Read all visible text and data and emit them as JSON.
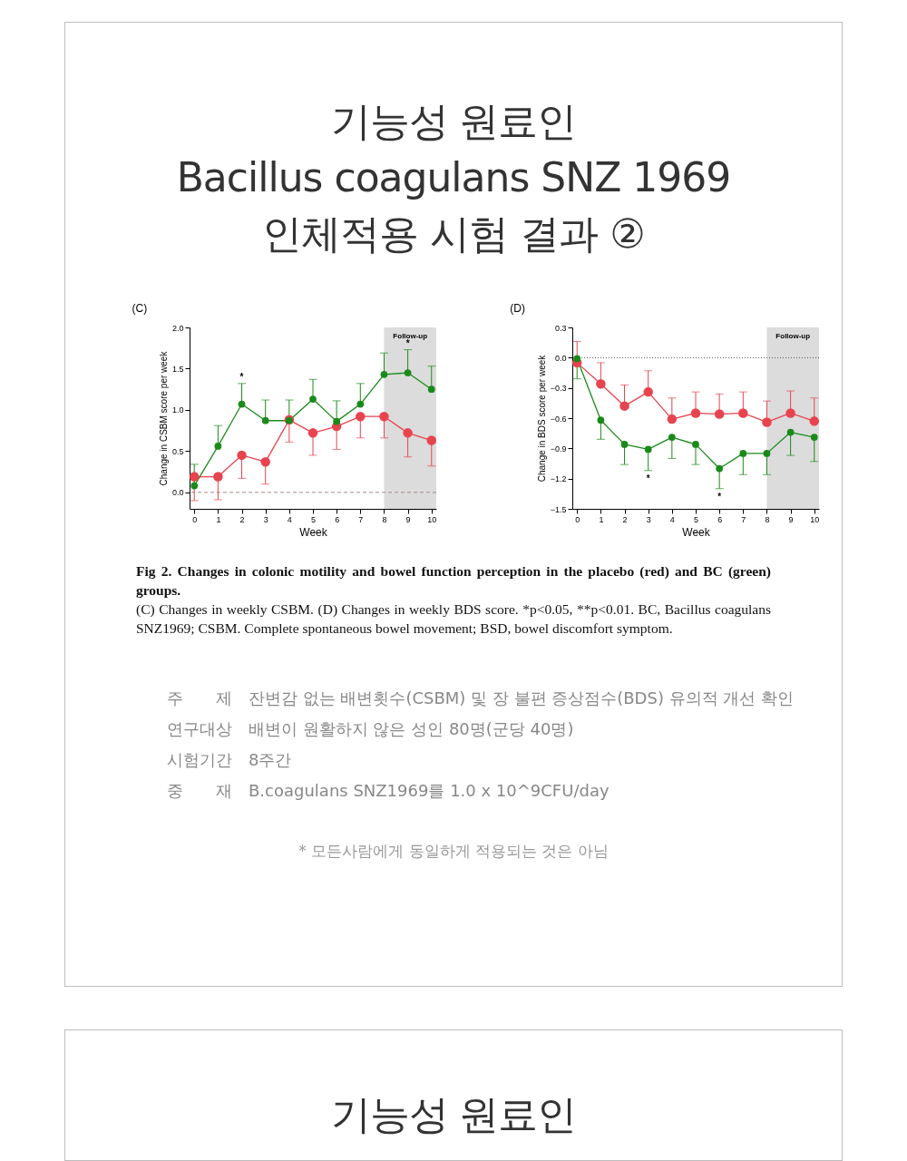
{
  "chart_data": [
    {
      "type": "line",
      "title": "(C)",
      "xlabel": "Week",
      "ylabel": "Change in CSBM score per week",
      "x": [
        0,
        1,
        2,
        3,
        4,
        5,
        6,
        7,
        8,
        9,
        10
      ],
      "xlim": [
        -0.2,
        10.2
      ],
      "xticks": [
        0,
        1,
        2,
        3,
        4,
        5,
        6,
        7,
        8,
        9,
        10
      ],
      "ylim": [
        -0.2,
        2.0
      ],
      "yticks": [
        {
          "value": 0,
          "label": "0.0"
        },
        0.5,
        {
          "value": 1,
          "label": "1.0"
        },
        1.5,
        {
          "value": 2,
          "label": "2.0"
        }
      ],
      "marker": "circle",
      "series": [
        {
          "color": "#e8444f",
          "values": [
            0.19,
            0.19,
            0.45,
            0.37,
            0.88,
            0.72,
            0.8,
            0.92,
            0.92,
            0.72,
            0.63
          ],
          "errors": [
            [
              -0.1,
              0.19
            ],
            [
              -0.09,
              0.19
            ],
            [
              0.17,
              0.45
            ],
            [
              0.1,
              0.37
            ],
            [
              0.61,
              0.88
            ],
            [
              0.45,
              0.72
            ],
            [
              0.52,
              0.8
            ],
            [
              0.66,
              0.92
            ],
            [
              0.66,
              0.92
            ],
            [
              0.43,
              0.72
            ],
            [
              0.32,
              0.63
            ]
          ]
        },
        {
          "color": "#1a8a1a",
          "values": [
            0.08,
            0.56,
            1.07,
            0.87,
            0.87,
            1.13,
            0.86,
            1.07,
            1.43,
            1.45,
            1.25
          ],
          "errors": [
            [
              0.08,
              0.34
            ],
            [
              0.56,
              0.81
            ],
            [
              1.07,
              1.32
            ],
            [
              0.87,
              1.12
            ],
            [
              0.87,
              1.12
            ],
            [
              1.13,
              1.37
            ],
            [
              0.86,
              1.11
            ],
            [
              1.07,
              1.32
            ],
            [
              1.43,
              1.69
            ],
            [
              1.45,
              1.73
            ],
            [
              1.25,
              1.53
            ]
          ]
        }
      ],
      "ref_lines": [
        {
          "axis": "y",
          "value": 0,
          "color": "#a88a8a",
          "line_style": "dashed"
        }
      ],
      "bands": [
        {
          "axis": "x",
          "from": 8,
          "to": 10.2,
          "label": "Follow-up",
          "color": "#dcdcdc"
        }
      ],
      "annotations": [
        "기능성 원료인\nBacillus coagulans SNZ 1969\n인체적용 시험 결과 ②",
        {
          "text": "*",
          "x": 2,
          "y": 1.32
        },
        {
          "text": "*",
          "x": 9,
          "y": 1.73
        }
      ]
    },
    {
      "type": "line",
      "title": "(D)",
      "xlabel": "Week",
      "ylabel": "Change in BDS score per week",
      "x": [
        0,
        1,
        2,
        3,
        4,
        5,
        6,
        7,
        8,
        9,
        10
      ],
      "xlim": [
        -0.2,
        10.2
      ],
      "xticks": [
        0,
        1,
        2,
        3,
        4,
        5,
        6,
        7,
        8,
        9,
        10
      ],
      "ylim": [
        -1.5,
        0.3
      ],
      "yticks": [
        -1.5,
        -1.2,
        -0.9,
        -0.6,
        -0.3,
        {
          "value": 0,
          "label": "0.0"
        },
        0.3
      ],
      "marker": "circle",
      "series": [
        {
          "color": "#e8444f",
          "values": [
            -0.05,
            -0.26,
            -0.48,
            -0.34,
            -0.61,
            -0.55,
            -0.56,
            -0.55,
            -0.64,
            -0.55,
            -0.63
          ],
          "errors": [
            [
              -0.05,
              0.16
            ],
            [
              -0.26,
              -0.05
            ],
            [
              -0.48,
              -0.27
            ],
            [
              -0.34,
              -0.13
            ],
            [
              -0.61,
              -0.4
            ],
            [
              -0.55,
              -0.34
            ],
            [
              -0.56,
              -0.36
            ],
            [
              -0.55,
              -0.34
            ],
            [
              -0.64,
              -0.43
            ],
            [
              -0.55,
              -0.33
            ],
            [
              -0.63,
              -0.4
            ]
          ]
        },
        {
          "color": "#1a8a1a",
          "values": [
            -0.01,
            -0.62,
            -0.86,
            -0.91,
            -0.79,
            -0.86,
            -1.1,
            -0.95,
            -0.95,
            -0.74,
            -0.79
          ],
          "errors": [
            [
              -0.21,
              -0.01
            ],
            [
              -0.81,
              -0.62
            ],
            [
              -1.06,
              -0.86
            ],
            [
              -1.12,
              -0.91
            ],
            [
              -1.0,
              -0.79
            ],
            [
              -1.06,
              -0.86
            ],
            [
              -1.3,
              -1.1
            ],
            [
              -1.16,
              -0.95
            ],
            [
              -1.16,
              -0.95
            ],
            [
              -0.97,
              -0.74
            ],
            [
              -1.03,
              -0.79
            ]
          ]
        }
      ],
      "ref_lines": [
        {
          "axis": "y",
          "value": 0,
          "color": "#555555",
          "line_style": "dotted"
        }
      ],
      "bands": [
        {
          "axis": "x",
          "from": 8,
          "to": 10.2,
          "label": "Follow-up",
          "color": "#dcdcdc"
        }
      ],
      "annotations": [
        {
          "text": "*",
          "x": 3,
          "y": -1.12
        },
        {
          "text": "*",
          "x": 6,
          "y": -1.3
        },
        "Fig 2. Changes in colonic motility and bowel function perception in the placebo (red) and BC (green) groups.",
        "(C) Changes in weekly CSBM. (D) Changes in weekly BDS score. *p<0.05, **p<0.01. BC, Bacillus coagulans SNZ1969; CSBM. Complete spontaneous bowel movement; BSD, bowel discomfort symptom.",
        "주　　제　잔변감 없는 배변횟수(CSBM) 및 장 불편 증상점수(BDS) 유의적 개선 확인",
        "연구대상　배변이 원활하지 않은 성인 80명(군당 40명)",
        "시험기간　8주간",
        "중　　재　B.coagulans SNZ1969를 1.0 x 10^9CFU/day",
        "* 모든사람에게 동일하게 적용되는 것은 아님",
        "기능성 원료인"
      ]
    }
  ]
}
